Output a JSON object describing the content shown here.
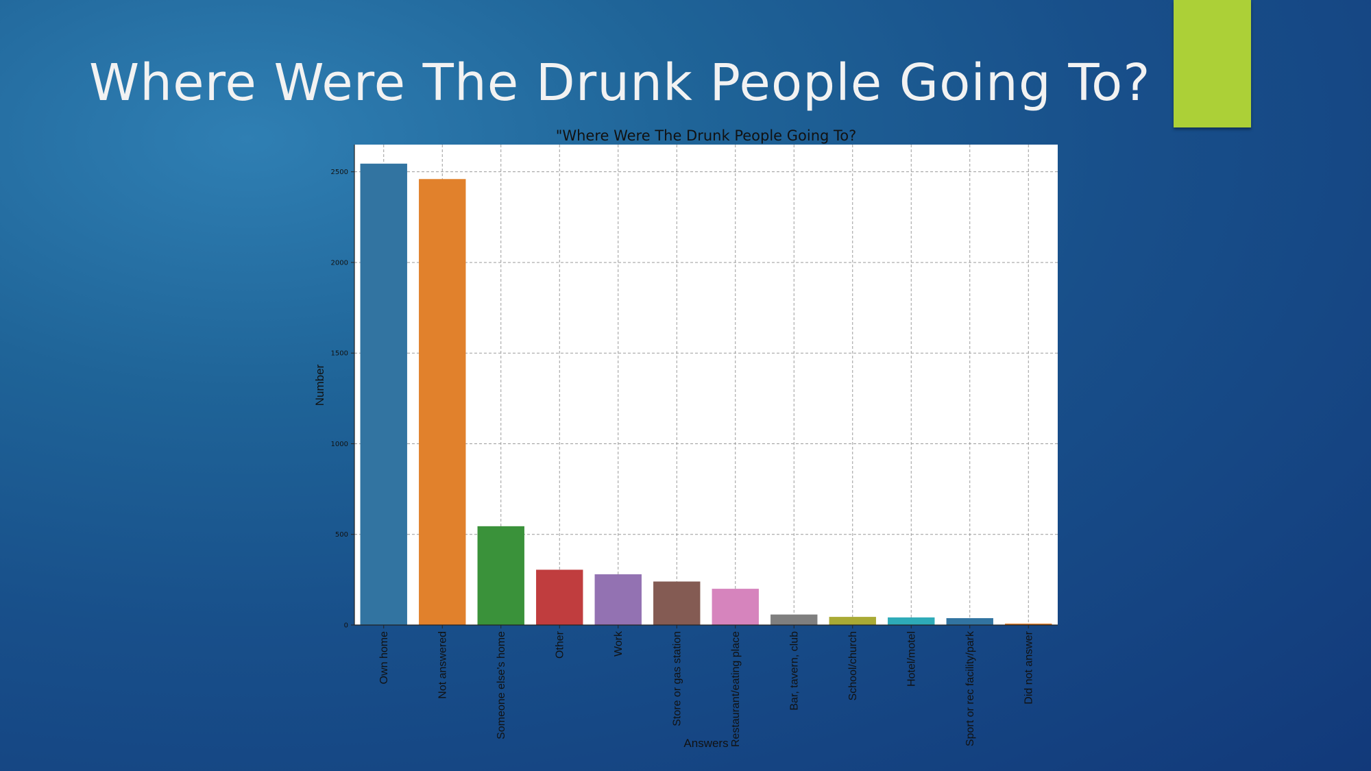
{
  "slide": {
    "title": "Where Were The Drunk People Going To?",
    "accent_color": "#acd037"
  },
  "chart_data": {
    "type": "bar",
    "title": "\"Where Were The Drunk People Going To?",
    "xlabel": "Answers",
    "ylabel": "Number",
    "ylim": [
      0,
      2650
    ],
    "yticks": [
      0,
      500,
      1000,
      1500,
      2000,
      2500
    ],
    "grid": true,
    "categories": [
      "Own home",
      "Not answered",
      "Someone else's home",
      "Other",
      "Work",
      "Store or gas station",
      "Restaurant/eating place",
      "Bar, tavern, club",
      "School/church",
      "Hotel/motel",
      "Sport or rec facility/park",
      "Did not answer"
    ],
    "values": [
      2545,
      2460,
      545,
      305,
      280,
      240,
      200,
      58,
      45,
      42,
      38,
      8
    ],
    "colors": [
      "#3274a1",
      "#e1812c",
      "#3a923a",
      "#c03d3e",
      "#9372b2",
      "#845b53",
      "#d684bd",
      "#7f7f7f",
      "#a9aa35",
      "#2eabb8",
      "#3274a1",
      "#e1812c"
    ]
  }
}
